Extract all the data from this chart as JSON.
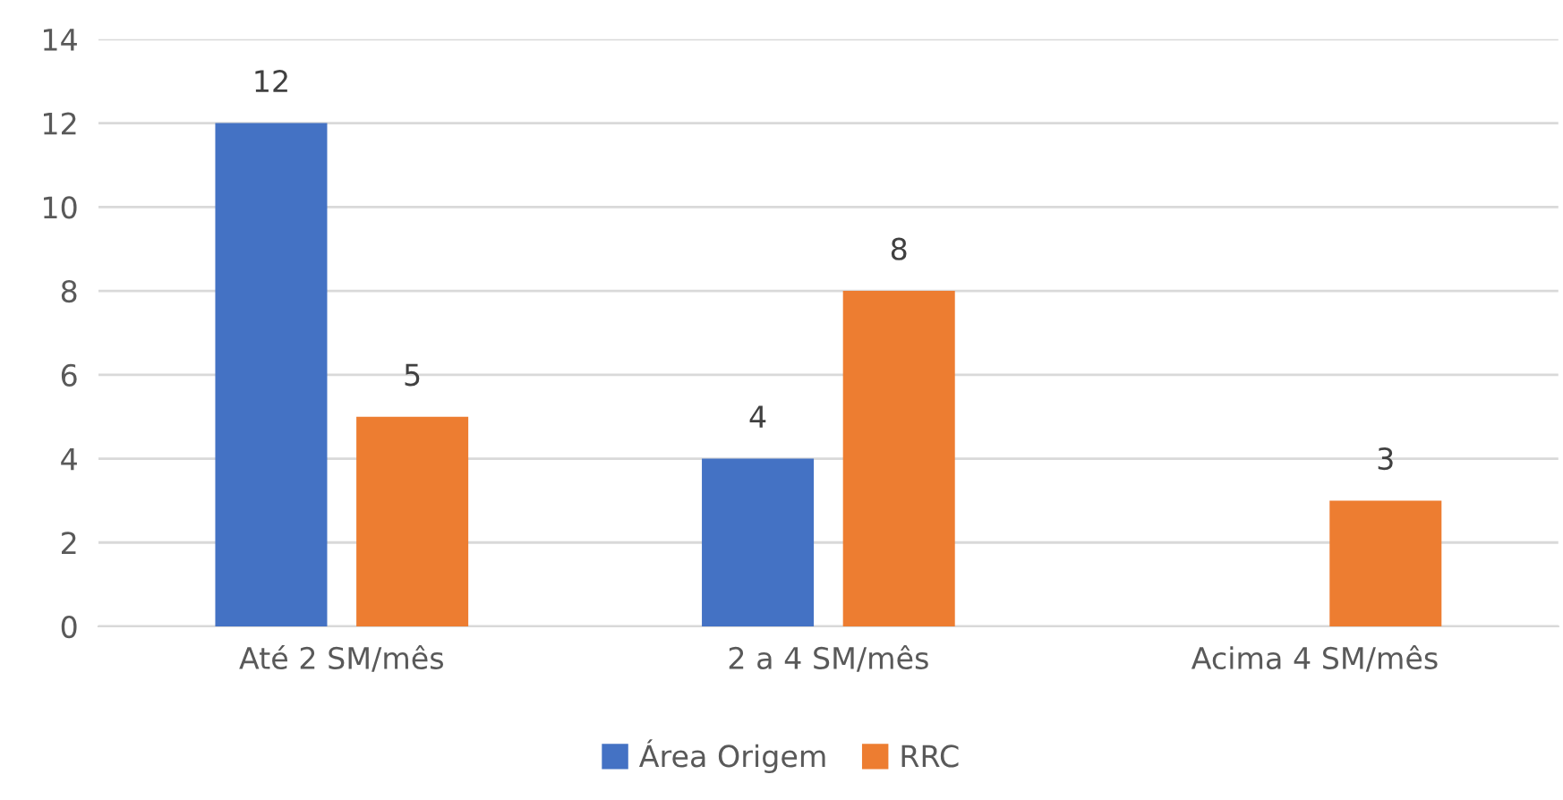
{
  "chart_data": {
    "type": "bar",
    "categories": [
      "Até 2 SM/mês",
      "2 a 4 SM/mês",
      "Acima 4 SM/mês"
    ],
    "series": [
      {
        "name": "Área Origem",
        "color": "#4472c4",
        "values": [
          12,
          4,
          null
        ]
      },
      {
        "name": "RRC",
        "color": "#ed7d31",
        "values": [
          5,
          8,
          3
        ]
      }
    ],
    "ylim": [
      0,
      14
    ],
    "yticks": [
      0,
      2,
      4,
      6,
      8,
      10,
      12,
      14
    ],
    "grid": "y",
    "legend": "bottom",
    "data_labels": true
  }
}
